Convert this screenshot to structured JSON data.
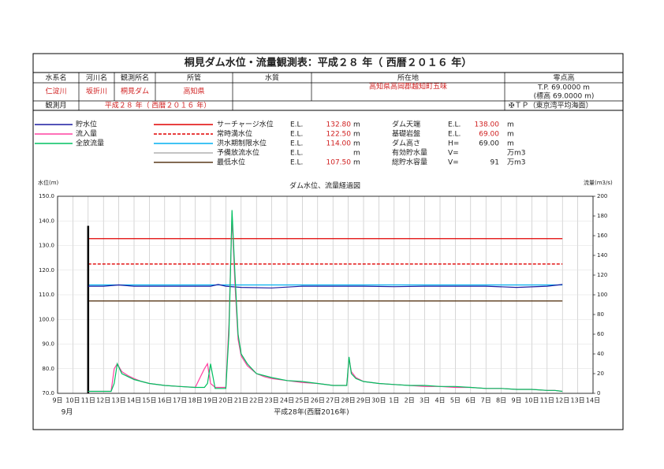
{
  "title": "桐見ダム水位・流量観測表：平成２８ 年（ 西暦２０１６ 年）",
  "header": {
    "columns": [
      "水系名",
      "河川名",
      "観測所名",
      "所管",
      "水質",
      "所在地",
      "零点高"
    ],
    "values": [
      "仁淀川",
      "坂折川",
      "桐見ダム",
      "高知県",
      "",
      "高知県高岡郡越知町五味"
    ],
    "zero_point": [
      "T.P.  69.0000  m",
      "(標高  69.0000  m)"
    ]
  },
  "month_row": {
    "label": "観測月",
    "value": "平成２８ 年（ 西暦２０１６ 年）",
    "datum": "✠ＴＰ（東京湾平均海面）"
  },
  "dam_specs": [
    {
      "name": "ダム天端",
      "prefix": "E.L.",
      "value": 138,
      "value_label": "138.00",
      "unit": "m"
    },
    {
      "name": "基礎岩盤",
      "prefix": "E.L.",
      "value": 69,
      "value_label": "69.00",
      "unit": "m"
    },
    {
      "name": "ダム高さ",
      "prefix": "H=",
      "value": 69,
      "value_label": "69.00",
      "unit": "m"
    },
    {
      "name": "有効貯水量",
      "prefix": "V=",
      "unit": "万m3"
    },
    {
      "name": "総貯水容量",
      "prefix": "V=",
      "value": 91,
      "unit": "万m3"
    }
  ],
  "chart_data": {
    "type": "line",
    "title": "ダム水位、流量経過図",
    "ylabel": "水位(m)",
    "y2label": "流量(m3/s)",
    "xlabel": "平成28年(西暦2016年)",
    "month_label": "9月",
    "xlim": [
      0,
      35
    ],
    "xticks": [
      {
        "value": 0,
        "label": "9日"
      },
      {
        "value": 1,
        "label": "10日"
      },
      {
        "value": 2,
        "label": "11日"
      },
      {
        "value": 3,
        "label": "12日"
      },
      {
        "value": 4,
        "label": "13日"
      },
      {
        "value": 5,
        "label": "14日"
      },
      {
        "value": 6,
        "label": "15日"
      },
      {
        "value": 7,
        "label": "16日"
      },
      {
        "value": 8,
        "label": "17日"
      },
      {
        "value": 9,
        "label": "18日"
      },
      {
        "value": 10,
        "label": "19日"
      },
      {
        "value": 11,
        "label": "20日"
      },
      {
        "value": 12,
        "label": "21日"
      },
      {
        "value": 13,
        "label": "22日"
      },
      {
        "value": 14,
        "label": "23日"
      },
      {
        "value": 15,
        "label": "24日"
      },
      {
        "value": 16,
        "label": "25日"
      },
      {
        "value": 17,
        "label": "26日"
      },
      {
        "value": 18,
        "label": "27日"
      },
      {
        "value": 19,
        "label": "28日"
      },
      {
        "value": 20,
        "label": "29日"
      },
      {
        "value": 21,
        "label": "30日"
      },
      {
        "value": 22,
        "label": "1日"
      },
      {
        "value": 23,
        "label": "2日"
      },
      {
        "value": 24,
        "label": "3日"
      },
      {
        "value": 25,
        "label": "4日"
      },
      {
        "value": 26,
        "label": "5日"
      },
      {
        "value": 27,
        "label": "6日"
      },
      {
        "value": 28,
        "label": "7日"
      },
      {
        "value": 29,
        "label": "8日"
      },
      {
        "value": 30,
        "label": "9日"
      },
      {
        "value": 31,
        "label": "10日"
      },
      {
        "value": 32,
        "label": "11日"
      },
      {
        "value": 33,
        "label": "12日"
      },
      {
        "value": 34,
        "label": "13日"
      },
      {
        "value": 35,
        "label": "14日"
      }
    ],
    "ylim": [
      70,
      150
    ],
    "yticks": [
      {
        "value": 70,
        "label": "70.0"
      },
      {
        "value": 80,
        "label": "80.0"
      },
      {
        "value": 90,
        "label": "90.0"
      },
      {
        "value": 100,
        "label": "100.0"
      },
      {
        "value": 110,
        "label": "110.0"
      },
      {
        "value": 120,
        "label": "120.0"
      },
      {
        "value": 130,
        "label": "130.0"
      },
      {
        "value": 140,
        "label": "140.0"
      },
      {
        "value": 150,
        "label": "150.0"
      }
    ],
    "y2lim": [
      0,
      200
    ],
    "y2ticks": [
      0,
      20,
      40,
      60,
      80,
      100,
      120,
      140,
      160,
      180,
      200
    ],
    "grid": true,
    "series": [
      {
        "name": "貯水位",
        "color": "#1a1aa0",
        "x": [
          2,
          3,
          4,
          5,
          6,
          8,
          10,
          10.5,
          11,
          12,
          14,
          16,
          18,
          20,
          22,
          24,
          26,
          28,
          30,
          32,
          33
        ],
        "values": [
          113.5,
          113.5,
          114,
          113.5,
          113.5,
          113.5,
          113.5,
          114.2,
          113.5,
          113,
          112.8,
          113.5,
          113.5,
          113.5,
          113.3,
          113.5,
          113.5,
          113.5,
          113,
          113.5,
          114.2
        ]
      },
      {
        "name": "流入量",
        "color": "#ff40a0",
        "axis": "y2",
        "x": [
          2,
          3.5,
          3.7,
          3.9,
          4.2,
          4.6,
          5,
          5.5,
          6,
          7,
          8,
          9,
          9.6,
          9.8,
          10,
          10.3,
          10.6,
          11,
          11.2,
          11.4,
          11.6,
          11.8,
          12,
          12.4,
          13,
          13.5,
          14,
          15,
          16,
          17,
          18,
          18.9,
          19.05,
          19.2,
          19.5,
          20,
          21,
          22,
          23,
          24,
          25,
          26,
          27,
          28,
          29,
          30,
          31,
          32,
          32.5,
          33
        ],
        "values": [
          2,
          2,
          25,
          30,
          22,
          18,
          15,
          12,
          10,
          8,
          7,
          6,
          25,
          30,
          10,
          6,
          6,
          6,
          70,
          180,
          110,
          55,
          38,
          28,
          20,
          17,
          15,
          13,
          11,
          10,
          8,
          8,
          35,
          22,
          16,
          12,
          10,
          9,
          8,
          7,
          7,
          6,
          6,
          5,
          5,
          4,
          4,
          3,
          3,
          2
        ]
      },
      {
        "name": "全放流量",
        "color": "#00c060",
        "axis": "y2",
        "x": [
          2,
          3.5,
          3.7,
          3.9,
          4.2,
          4.6,
          5,
          5.5,
          6,
          7,
          8,
          9,
          9.6,
          9.8,
          10,
          10.3,
          10.6,
          11,
          11.2,
          11.4,
          11.6,
          11.8,
          12,
          12.4,
          13,
          13.5,
          14,
          15,
          16,
          17,
          18,
          18.9,
          19.05,
          19.2,
          19.5,
          20,
          21,
          22,
          23,
          24,
          25,
          26,
          27,
          28,
          29,
          30,
          31,
          32,
          32.5,
          33
        ],
        "values": [
          2,
          2,
          10,
          30,
          20,
          17,
          14,
          12,
          10,
          8,
          7,
          6,
          6,
          10,
          30,
          5,
          5,
          5,
          60,
          186,
          120,
          60,
          40,
          30,
          20,
          18,
          16,
          13,
          12,
          10,
          8,
          8,
          37,
          20,
          15,
          12,
          10,
          9,
          8,
          8,
          7,
          7,
          6,
          5,
          5,
          4,
          4,
          3,
          3,
          2
        ]
      }
    ],
    "levels": [
      {
        "name": "サーチャージ水位",
        "prefix": "E.L.",
        "value": 132.8,
        "value_label": "132.80",
        "unit": "m",
        "color": "#e00000",
        "dashed": false
      },
      {
        "name": "常時満水位",
        "prefix": "E.L.",
        "value": 122.5,
        "value_label": "122.50",
        "unit": "m",
        "color": "#e00000",
        "dashed": true
      },
      {
        "name": "洪水期制限水位",
        "prefix": "E.L.",
        "value": 114,
        "value_label": "114.00",
        "unit": "m",
        "color": "#00b0f0",
        "dashed": false
      },
      {
        "name": "予備放流水位",
        "prefix": "E.L.",
        "unit": "m",
        "color": "#b0b0b0",
        "dashed": false
      },
      {
        "name": "最低水位",
        "prefix": "E.L.",
        "value": 107.5,
        "value_label": "107.50",
        "unit": "m",
        "color": "#5a3a1a",
        "dashed": false
      }
    ]
  }
}
